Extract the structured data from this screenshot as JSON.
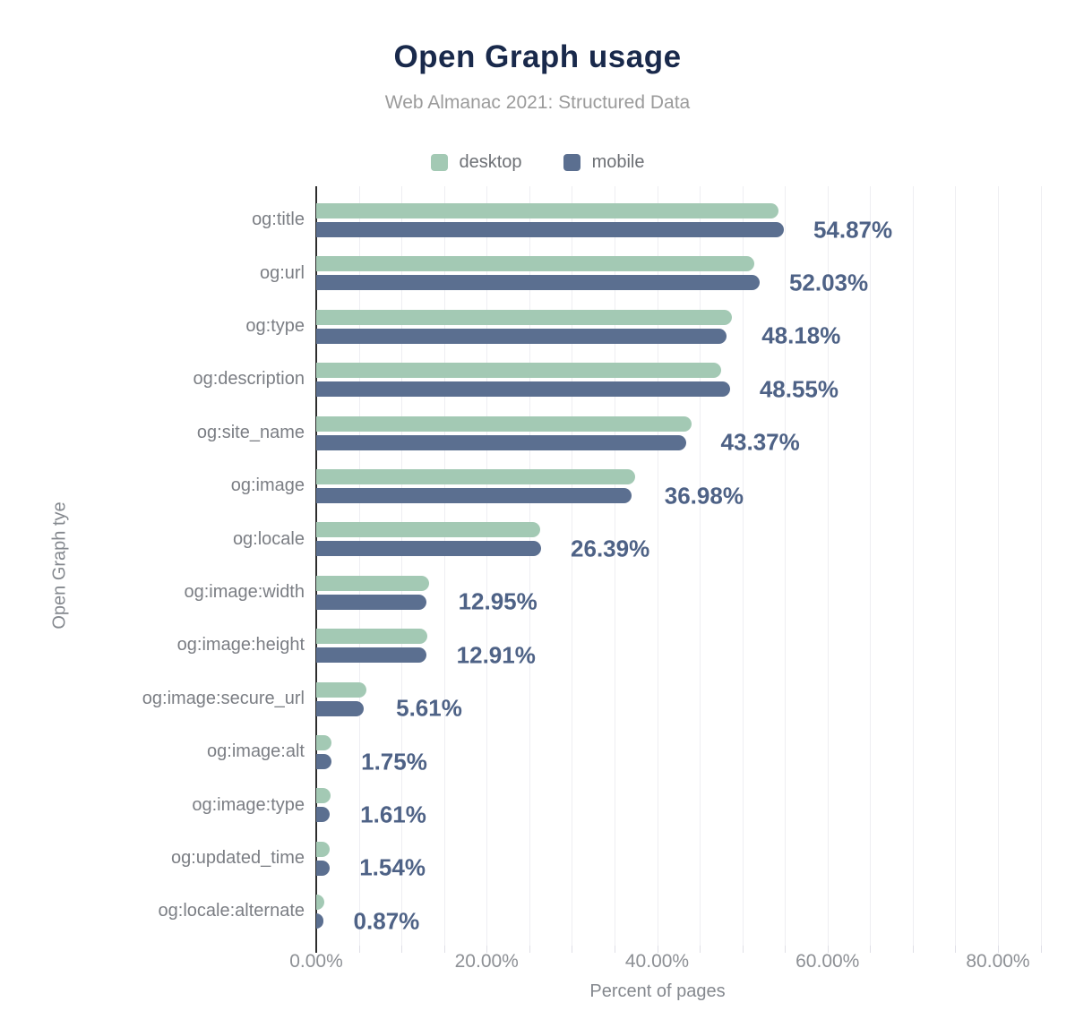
{
  "title": "Open Graph usage",
  "subtitle": "Web Almanac 2021: Structured Data",
  "legend": [
    {
      "label": "desktop",
      "color": "#a3c9b4"
    },
    {
      "label": "mobile",
      "color": "#5b6f90"
    }
  ],
  "chart_data": {
    "type": "bar",
    "orientation": "horizontal",
    "title": "Open Graph usage",
    "subtitle": "Web Almanac 2021: Structured Data",
    "xlabel": "Percent of pages",
    "ylabel": "Open Graph tye",
    "xlim": [
      0,
      85
    ],
    "grid_step": 5,
    "legend_position": "top",
    "categories": [
      "og:title",
      "og:url",
      "og:type",
      "og:description",
      "og:site_name",
      "og:image",
      "og:locale",
      "og:image:width",
      "og:image:height",
      "og:image:secure_url",
      "og:image:alt",
      "og:image:type",
      "og:updated_time",
      "og:locale:alternate"
    ],
    "series": [
      {
        "name": "desktop",
        "color": "#a3c9b4",
        "values": [
          54.2,
          51.4,
          48.8,
          47.5,
          44.0,
          37.4,
          26.3,
          13.2,
          13.0,
          5.9,
          1.8,
          1.7,
          1.6,
          0.9
        ]
      },
      {
        "name": "mobile",
        "color": "#5b6f90",
        "values": [
          54.87,
          52.03,
          48.18,
          48.55,
          43.37,
          36.98,
          26.39,
          12.95,
          12.91,
          5.61,
          1.75,
          1.61,
          1.54,
          0.87
        ]
      }
    ],
    "value_labels": [
      "54.87%",
      "52.03%",
      "48.18%",
      "48.55%",
      "43.37%",
      "36.98%",
      "26.39%",
      "12.95%",
      "12.91%",
      "5.61%",
      "1.75%",
      "1.61%",
      "1.54%",
      "0.87%"
    ],
    "value_label_series": "mobile",
    "x_ticks": [
      {
        "value": 0,
        "label": "0.00%"
      },
      {
        "value": 20,
        "label": "20.00%"
      },
      {
        "value": 40,
        "label": "40.00%"
      },
      {
        "value": 60,
        "label": "60.00%"
      },
      {
        "value": 80,
        "label": "80.00%"
      }
    ]
  },
  "colors": {
    "title": "#19294b",
    "subtitle": "#9b9b9b",
    "value_label": "#4e6286",
    "category_label": "#7b7e84",
    "axis_line": "#2d2d2d",
    "gridline": "#eeeef2",
    "background": "#ffffff"
  }
}
